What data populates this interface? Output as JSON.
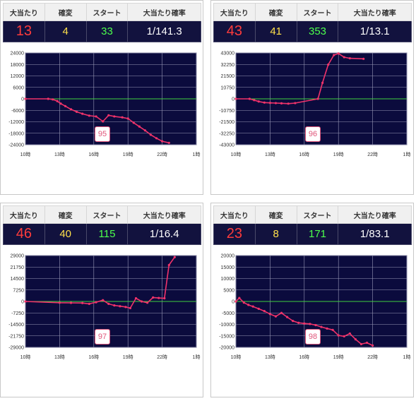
{
  "headers": {
    "hits": "大当たり",
    "kakuhen": "確変",
    "start": "スタート",
    "rate": "大当たり確率"
  },
  "colors": {
    "hits": "#ff3b3b",
    "kakuhen": "#ffe04a",
    "start": "#4cff4c",
    "rate": "#ffffff",
    "plot_bg": "#0b0b3d",
    "line": "#f0336a",
    "zero": "#3fd23f"
  },
  "panels": [
    {
      "hits": "13",
      "kakuhen": "4",
      "start": "33",
      "rate": "1/141.3",
      "number": "95"
    },
    {
      "hits": "43",
      "kakuhen": "41",
      "start": "353",
      "rate": "1/13.1",
      "number": "96"
    },
    {
      "hits": "46",
      "kakuhen": "40",
      "start": "115",
      "rate": "1/16.4",
      "number": "97"
    },
    {
      "hits": "23",
      "kakuhen": "8",
      "start": "171",
      "rate": "1/83.1",
      "number": "98"
    }
  ],
  "chart_data": [
    {
      "type": "line",
      "xlim": [
        10,
        25
      ],
      "x_ticks": [
        10,
        13,
        16,
        19,
        22,
        25
      ],
      "x_tick_labels": [
        "10時",
        "13時",
        "16時",
        "19時",
        "22時",
        "1時"
      ],
      "ylim": [
        -24000,
        24000
      ],
      "y_ticks": [
        24000,
        18000,
        12000,
        6000,
        0,
        -6000,
        -12000,
        -18000,
        -24000
      ],
      "series": [
        {
          "x": [
            10.0,
            12.0,
            12.4,
            12.8,
            13.1,
            13.5,
            14.0,
            14.5,
            15.0,
            15.6,
            16.2,
            16.8,
            17.3,
            17.8,
            18.5,
            19.0,
            19.5,
            20.0,
            20.5,
            21.0,
            21.5,
            22.0,
            22.6
          ],
          "y": [
            0,
            0,
            -300,
            -1200,
            -2500,
            -3800,
            -5500,
            -6800,
            -7800,
            -8800,
            -9200,
            -11800,
            -8600,
            -9200,
            -9700,
            -10300,
            -12500,
            -14500,
            -16500,
            -18800,
            -20600,
            -22200,
            -23000
          ]
        }
      ]
    },
    {
      "type": "line",
      "xlim": [
        10,
        25
      ],
      "x_ticks": [
        10,
        13,
        16,
        19,
        22,
        25
      ],
      "x_tick_labels": [
        "10時",
        "13時",
        "16時",
        "19時",
        "22時",
        "1時"
      ],
      "ylim": [
        -43000,
        43000
      ],
      "y_ticks": [
        43000,
        32250,
        21500,
        10750,
        0,
        -10750,
        -21500,
        -32250,
        -43000
      ],
      "series": [
        {
          "x": [
            10.0,
            11.2,
            11.6,
            12.0,
            12.5,
            13.0,
            13.5,
            14.0,
            14.6,
            15.2,
            17.2,
            17.6,
            18.1,
            18.6,
            19.0,
            19.5,
            20.0,
            21.2
          ],
          "y": [
            0,
            0,
            -1200,
            -2500,
            -3500,
            -3800,
            -4000,
            -4200,
            -4500,
            -4000,
            0,
            15000,
            32000,
            41000,
            42500,
            39000,
            38000,
            37500
          ]
        }
      ]
    },
    {
      "type": "line",
      "xlim": [
        10,
        25
      ],
      "x_ticks": [
        10,
        13,
        16,
        19,
        22,
        25
      ],
      "x_tick_labels": [
        "10時",
        "13時",
        "16時",
        "19時",
        "22時",
        "1時"
      ],
      "ylim": [
        -29000,
        29000
      ],
      "y_ticks": [
        29000,
        21750,
        14500,
        7250,
        0,
        -7250,
        -14500,
        -21750,
        -29000
      ],
      "series": [
        {
          "x": [
            10.0,
            13.0,
            14.0,
            15.0,
            15.6,
            16.2,
            16.8,
            17.3,
            17.8,
            18.3,
            18.8,
            19.2,
            19.7,
            20.2,
            20.7,
            21.2,
            21.7,
            22.2,
            22.6,
            23.1
          ],
          "y": [
            0,
            -800,
            -900,
            -1000,
            -1500,
            -500,
            800,
            -1500,
            -2500,
            -3000,
            -3500,
            -4200,
            2000,
            0,
            -800,
            2500,
            2200,
            2000,
            23000,
            28000
          ]
        }
      ]
    },
    {
      "type": "line",
      "xlim": [
        10,
        25
      ],
      "x_ticks": [
        10,
        13,
        16,
        19,
        22,
        25
      ],
      "x_tick_labels": [
        "10時",
        "13時",
        "16時",
        "19時",
        "22時",
        "1時"
      ],
      "ylim": [
        -20000,
        20000
      ],
      "y_ticks": [
        20000,
        15000,
        10000,
        5000,
        0,
        -5000,
        -10000,
        -15000,
        -20000
      ],
      "series": [
        {
          "x": [
            10.0,
            10.3,
            10.7,
            11.1,
            11.5,
            12.0,
            12.5,
            13.0,
            13.5,
            14.0,
            14.5,
            15.0,
            15.5,
            16.0,
            16.5,
            17.0,
            17.5,
            18.0,
            18.5,
            19.0,
            19.5,
            20.0,
            20.5,
            21.0,
            21.5,
            22.0
          ],
          "y": [
            0,
            1500,
            -500,
            -1500,
            -2200,
            -3200,
            -4200,
            -5500,
            -6500,
            -5000,
            -6800,
            -8500,
            -9300,
            -9600,
            -9800,
            -10300,
            -11100,
            -11800,
            -12400,
            -14800,
            -15200,
            -14000,
            -16500,
            -18600,
            -18000,
            -19200
          ]
        }
      ]
    }
  ]
}
